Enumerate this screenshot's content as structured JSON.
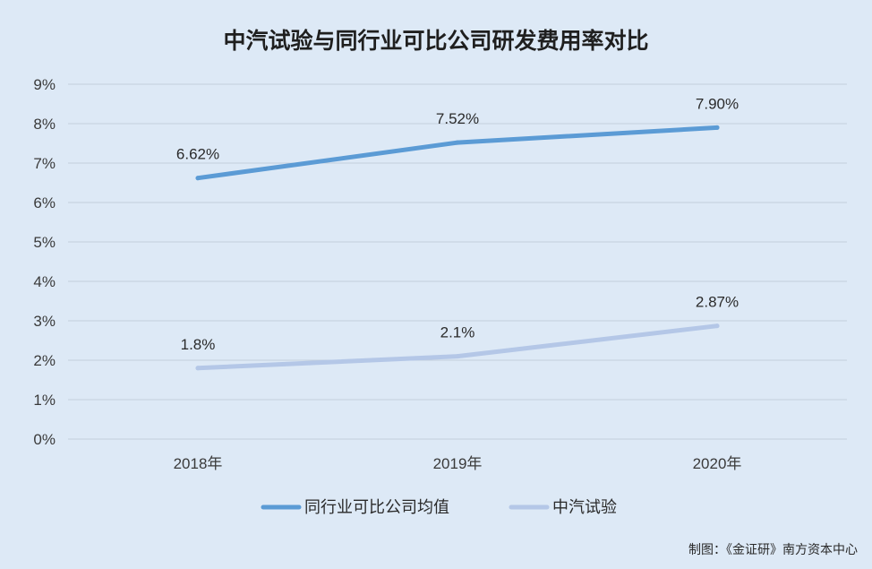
{
  "chart_data": {
    "type": "line",
    "title": "中汽试验与同行业可比公司研发费用率对比",
    "categories": [
      "2018年",
      "2019年",
      "2020年"
    ],
    "series": [
      {
        "name": "同行业可比公司均值",
        "values": [
          6.62,
          7.52,
          7.9
        ],
        "labels": [
          "6.62%",
          "7.52%",
          "7.90%"
        ],
        "color": "#5b9bd5"
      },
      {
        "name": "中汽试验",
        "values": [
          1.8,
          2.1,
          2.87
        ],
        "labels": [
          "1.8%",
          "2.1%",
          "2.87%"
        ],
        "color": "#b4c7e7"
      }
    ],
    "ylim": [
      0,
      9
    ],
    "yticks": [
      0,
      1,
      2,
      3,
      4,
      5,
      6,
      7,
      8,
      9
    ],
    "ytick_labels": [
      "0%",
      "1%",
      "2%",
      "3%",
      "4%",
      "5%",
      "6%",
      "7%",
      "8%",
      "9%"
    ],
    "grid": true,
    "legend_position": "bottom"
  },
  "source": "制图：《金证研》南方资本中心"
}
